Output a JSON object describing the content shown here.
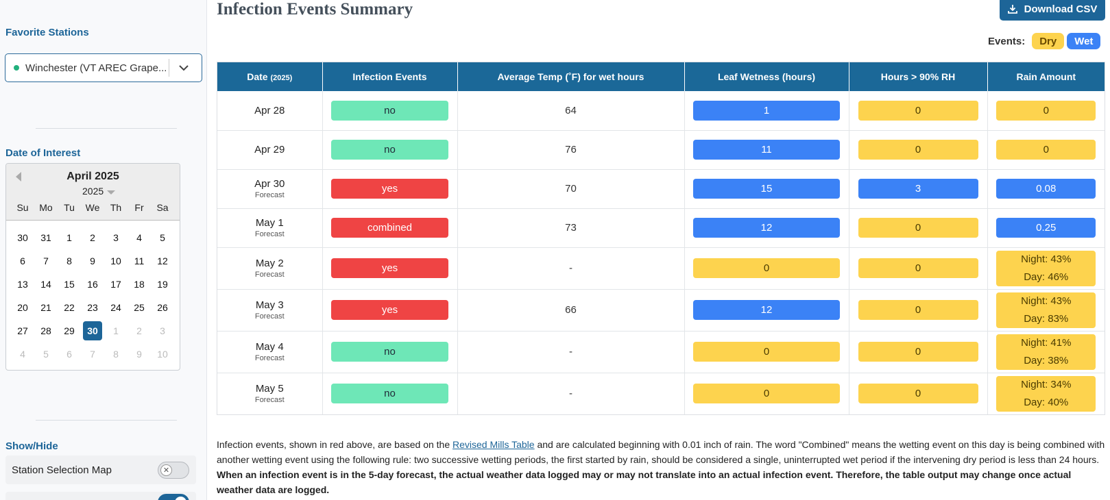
{
  "sidebar": {
    "favorite_title": "Favorite Stations",
    "station_value": "Winchester (VT AREC Grape...",
    "date_title": "Date of Interest",
    "calendar": {
      "month_label": "April 2025",
      "year_label": "2025",
      "dow": [
        "Su",
        "Mo",
        "Tu",
        "We",
        "Th",
        "Fr",
        "Sa"
      ],
      "days": [
        {
          "d": "30",
          "dim": false
        },
        {
          "d": "31",
          "dim": false
        },
        {
          "d": "1",
          "dim": false
        },
        {
          "d": "2",
          "dim": false
        },
        {
          "d": "3",
          "dim": false
        },
        {
          "d": "4",
          "dim": false
        },
        {
          "d": "5",
          "dim": false
        },
        {
          "d": "6",
          "dim": false
        },
        {
          "d": "7",
          "dim": false
        },
        {
          "d": "8",
          "dim": false
        },
        {
          "d": "9",
          "dim": false
        },
        {
          "d": "10",
          "dim": false
        },
        {
          "d": "11",
          "dim": false
        },
        {
          "d": "12",
          "dim": false
        },
        {
          "d": "13",
          "dim": false
        },
        {
          "d": "14",
          "dim": false
        },
        {
          "d": "15",
          "dim": false
        },
        {
          "d": "16",
          "dim": false
        },
        {
          "d": "17",
          "dim": false
        },
        {
          "d": "18",
          "dim": false
        },
        {
          "d": "19",
          "dim": false
        },
        {
          "d": "20",
          "dim": false
        },
        {
          "d": "21",
          "dim": false
        },
        {
          "d": "22",
          "dim": false
        },
        {
          "d": "23",
          "dim": false
        },
        {
          "d": "24",
          "dim": false
        },
        {
          "d": "25",
          "dim": false
        },
        {
          "d": "26",
          "dim": false
        },
        {
          "d": "27",
          "dim": false
        },
        {
          "d": "28",
          "dim": false
        },
        {
          "d": "29",
          "dim": false
        },
        {
          "d": "30",
          "dim": false,
          "selected": true
        },
        {
          "d": "1",
          "dim": true
        },
        {
          "d": "2",
          "dim": true
        },
        {
          "d": "3",
          "dim": true
        },
        {
          "d": "4",
          "dim": true
        },
        {
          "d": "5",
          "dim": true
        },
        {
          "d": "6",
          "dim": true
        },
        {
          "d": "7",
          "dim": true
        },
        {
          "d": "8",
          "dim": true
        },
        {
          "d": "9",
          "dim": true
        },
        {
          "d": "10",
          "dim": true
        }
      ]
    },
    "showhide_title": "Show/Hide",
    "toggle_station_map": "Station Selection Map",
    "toggle_station_map_on": false
  },
  "main": {
    "title": "Infection Events Summary",
    "download_label": "Download CSV",
    "events_label": "Events:",
    "legend_dry": "Dry",
    "legend_wet": "Wet",
    "colors": {
      "header": "#1b6898",
      "no": "#6ee7b7",
      "yes": "#ef4444",
      "wet": "#3b82f6",
      "dry": "#fdd34e"
    },
    "table": {
      "headers": {
        "date": "Date",
        "date_year": "(2025)",
        "infection": "Infection Events",
        "avg_temp": "Average Temp (˚F) for wet hours",
        "leaf_wetness": "Leaf Wetness (hours)",
        "rh": "Hours > 90% RH",
        "rain": "Rain Amount"
      },
      "rows": [
        {
          "date": "Apr 28",
          "sub": "",
          "inf": "no",
          "inf_c": "no",
          "temp": "64",
          "lw": "1",
          "lw_c": "wet",
          "rh": "0",
          "rh_c": "dry",
          "rain": [
            "0"
          ],
          "rain_c": "dry"
        },
        {
          "date": "Apr 29",
          "sub": "",
          "inf": "no",
          "inf_c": "no",
          "temp": "76",
          "lw": "11",
          "lw_c": "wet",
          "rh": "0",
          "rh_c": "dry",
          "rain": [
            "0"
          ],
          "rain_c": "dry"
        },
        {
          "date": "Apr 30",
          "sub": "Forecast",
          "inf": "yes",
          "inf_c": "yes",
          "temp": "70",
          "lw": "15",
          "lw_c": "wet",
          "rh": "3",
          "rh_c": "wet",
          "rain": [
            "0.08"
          ],
          "rain_c": "wet"
        },
        {
          "date": "May 1",
          "sub": "Forecast",
          "inf": "combined",
          "inf_c": "yes",
          "temp": "73",
          "lw": "12",
          "lw_c": "wet",
          "rh": "0",
          "rh_c": "dry",
          "rain": [
            "0.25"
          ],
          "rain_c": "wet"
        },
        {
          "date": "May 2",
          "sub": "Forecast",
          "inf": "yes",
          "inf_c": "yes",
          "temp": "-",
          "lw": "0",
          "lw_c": "dry",
          "rh": "0",
          "rh_c": "dry",
          "rain": [
            "Night: 43%",
            "Day: 46%"
          ],
          "rain_c": "dry"
        },
        {
          "date": "May 3",
          "sub": "Forecast",
          "inf": "yes",
          "inf_c": "yes",
          "temp": "66",
          "lw": "12",
          "lw_c": "wet",
          "rh": "0",
          "rh_c": "dry",
          "rain": [
            "Night: 43%",
            "Day: 83%"
          ],
          "rain_c": "dry"
        },
        {
          "date": "May 4",
          "sub": "Forecast",
          "inf": "no",
          "inf_c": "no",
          "temp": "-",
          "lw": "0",
          "lw_c": "dry",
          "rh": "0",
          "rh_c": "dry",
          "rain": [
            "Night: 41%",
            "Day: 38%"
          ],
          "rain_c": "dry"
        },
        {
          "date": "May 5",
          "sub": "Forecast",
          "inf": "no",
          "inf_c": "no",
          "temp": "-",
          "lw": "0",
          "lw_c": "dry",
          "rh": "0",
          "rh_c": "dry",
          "rain": [
            "Night: 34%",
            "Day: 40%"
          ],
          "rain_c": "dry"
        }
      ]
    },
    "note": {
      "part1": "Infection events, shown in red above, are based on the ",
      "link": "Revised Mills Table",
      "part2": " and are calculated beginning with 0.01 inch of rain. The word \"Combined\" means the wetting event on this day is being combined with another wetting event using the following rule: two successive wetting periods, the first started by rain, should be considered a single, uninterrupted wet period if the intervening dry period is less than 24 hours. ",
      "bold": "When an infection event is in the 5-day forecast, the actual weather data logged may or may not translate into an actual infection event. Therefore, the table output may change once actual weather data are logged."
    }
  }
}
